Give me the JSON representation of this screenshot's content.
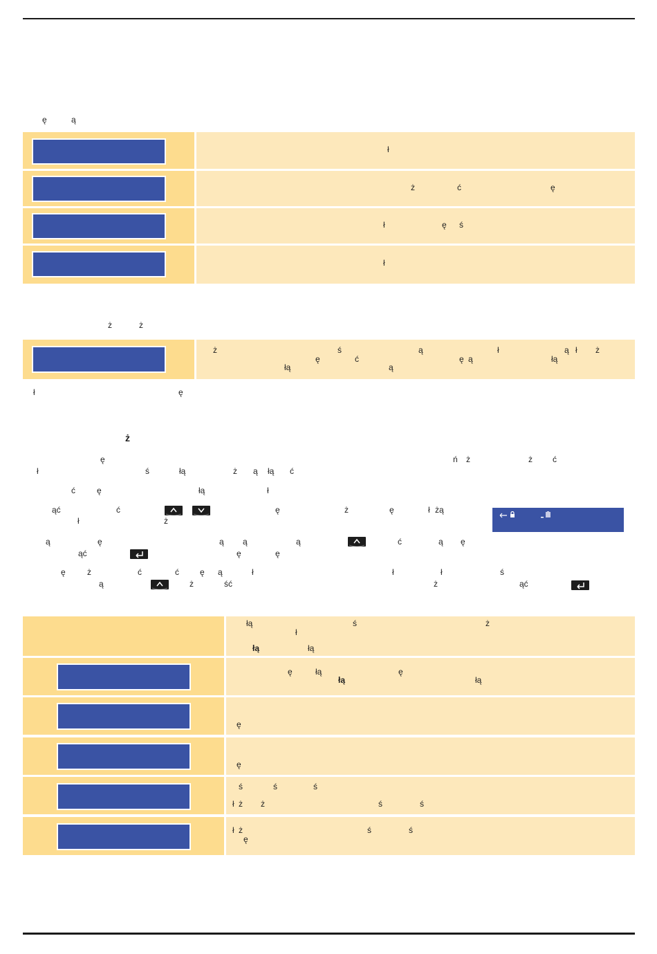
{
  "sections": {
    "s1_text": [
      "ę",
      "ą"
    ],
    "s1_rows": [
      [
        "ł"
      ],
      [
        "ż",
        "ć",
        "ę"
      ],
      [
        "ł",
        "ę",
        "ś"
      ],
      [
        "ł"
      ]
    ],
    "s2_text": [
      "ż",
      "ż"
    ],
    "s2_row_line1": [
      "ż",
      "ś",
      "ą",
      "ł",
      "ą",
      "ł",
      "ż"
    ],
    "s2_row_line2": [
      "ą",
      "ę",
      "ć",
      "ę",
      "ą",
      "łą",
      "łą"
    ],
    "s2_note": [
      "ł",
      "ę"
    ],
    "s3_heading": "ż",
    "s3_p1_l1": [
      "ę",
      "ń",
      "ż",
      "ż",
      "ć"
    ],
    "s3_p1_l2": [
      "ł",
      "ś",
      "łą",
      "ż",
      "ą",
      "łą",
      "ć"
    ],
    "s3_p2": [
      "ć",
      "ę",
      "łą",
      "ł"
    ],
    "s3_p3_l1": [
      "ąć",
      "ć",
      "ę",
      "ż",
      "ę",
      "ł",
      "żą"
    ],
    "s3_p3_l2": [
      "ł",
      "ż"
    ],
    "s3_p4_l1": [
      "ą",
      "ę",
      "ą",
      "ą",
      "ą",
      "ć",
      "ą",
      "ę"
    ],
    "s3_p4_l2": [
      "ąć",
      "ę",
      "ę"
    ],
    "s3_p5_l1": [
      "ę",
      "ż",
      "ć",
      "ć",
      "ę",
      "ą",
      "ł",
      "ł",
      "ł",
      "ś"
    ],
    "s3_p5_l2": [
      "ą",
      "ż",
      "ść",
      "ż",
      "ąć"
    ],
    "t2_r0_l1": [
      "łą",
      "ś",
      "ż"
    ],
    "t2_r0_l2": [
      "ł"
    ],
    "t2_r0_l3": [
      "łą",
      "łą"
    ],
    "t2_r1_l1": [
      "ę",
      "łą",
      "ę"
    ],
    "t2_r1_l2": [
      "łą",
      "łą"
    ],
    "t2_r2": [
      "ę"
    ],
    "t2_r3": [
      "ę"
    ],
    "t2_r4_l1": [
      "ś",
      "ś",
      "ś"
    ],
    "t2_r4_l2": [
      "ł",
      "ż",
      "ż",
      "ś",
      "ś"
    ],
    "t2_r5_l1": [
      "ł",
      "ż",
      "ś",
      "ś"
    ],
    "t2_r5_l2": [
      "ę"
    ]
  },
  "icons": {
    "key_up": "up-arrow-key-icon",
    "key_down": "down-arrow-key-icon",
    "key_enter": "enter-key-icon",
    "panel_back": "back-arrow-icon",
    "panel_lock": "lock-icon",
    "panel_battery": "battery-icon"
  },
  "colors": {
    "lcd_blue": "#3a53a4",
    "label_orange": "#fddc8e",
    "content_cream": "#fde8bb"
  }
}
